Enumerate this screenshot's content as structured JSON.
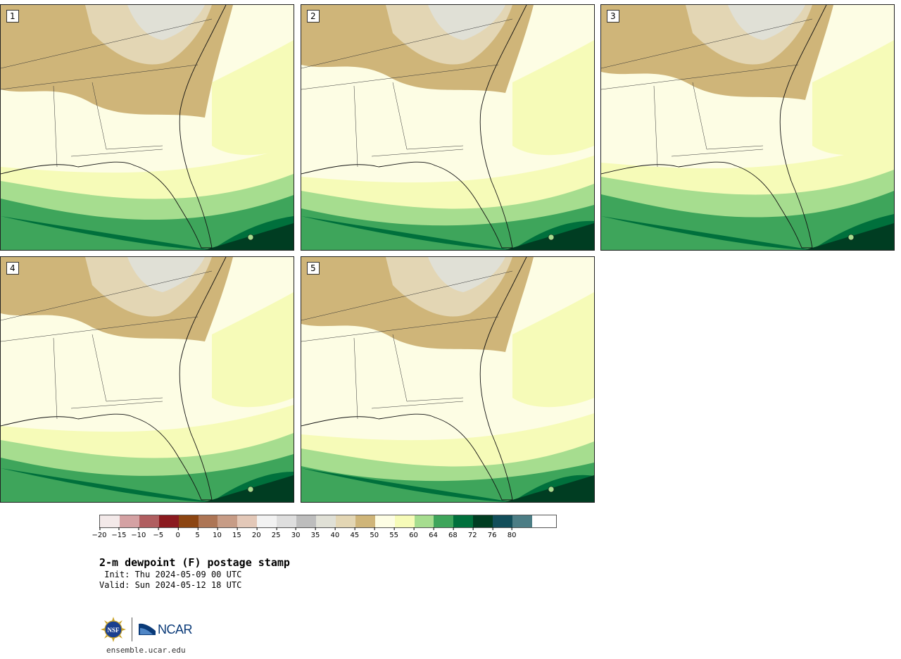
{
  "panels": [
    {
      "label": "1"
    },
    {
      "label": "2"
    },
    {
      "label": "3"
    },
    {
      "label": "4"
    },
    {
      "label": "5"
    }
  ],
  "colorbar": {
    "colors": [
      "#f3e9e9",
      "#d4a1a3",
      "#b05e60",
      "#8b1a1f",
      "#8c4512",
      "#ad7555",
      "#c79c86",
      "#e3c8b8",
      "#f2f2f2",
      "#dedede",
      "#bdbdbd",
      "#e0e0d6",
      "#e3d6b4",
      "#cfb579",
      "#fdfde4",
      "#f6fbb8",
      "#a6dd8f",
      "#3ea55b",
      "#00703c",
      "#003d22",
      "#124e5a",
      "#4c7d85"
    ],
    "tick_labels": [
      "−20",
      "−15",
      "−10",
      "−5",
      "0",
      "5",
      "10",
      "15",
      "20",
      "25",
      "30",
      "35",
      "40",
      "45",
      "50",
      "55",
      "60",
      "64",
      "68",
      "72",
      "76",
      "80"
    ]
  },
  "title": "2-m dewpoint (F) postage stamp",
  "init": " Init: Thu 2024-05-09 00 UTC",
  "valid": "Valid: Sun 2024-05-12 18 UTC",
  "logos": {
    "nsf": "NSF",
    "ncar": "NCAR"
  },
  "site": "ensemble.ucar.edu"
}
